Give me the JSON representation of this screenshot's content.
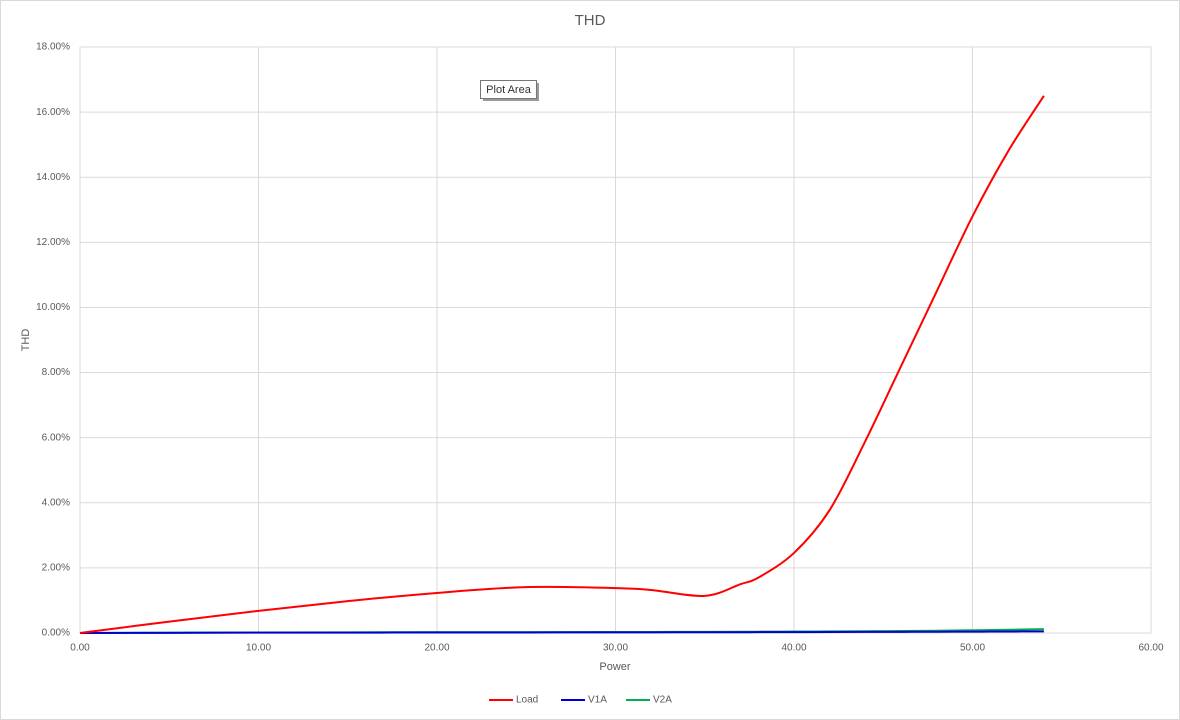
{
  "chart_data": {
    "type": "line",
    "title": "THD",
    "x_label": "Power",
    "y_label": "THD",
    "tooltip": "Plot Area",
    "xlim": [
      0,
      60
    ],
    "ylim": [
      0,
      18
    ],
    "xticks": [
      {
        "value": 0,
        "label": "0.00"
      },
      {
        "value": 10,
        "label": "10.00"
      },
      {
        "value": 20,
        "label": "20.00"
      },
      {
        "value": 30,
        "label": "30.00"
      },
      {
        "value": 40,
        "label": "40.00"
      },
      {
        "value": 50,
        "label": "50.00"
      },
      {
        "value": 60,
        "label": "60.00"
      }
    ],
    "yticks": [
      {
        "value": 0,
        "label": "0.00%"
      },
      {
        "value": 2,
        "label": "2.00%"
      },
      {
        "value": 4,
        "label": "4.00%"
      },
      {
        "value": 6,
        "label": "6.00%"
      },
      {
        "value": 8,
        "label": "8.00%"
      },
      {
        "value": 10,
        "label": "10.00%"
      },
      {
        "value": 12,
        "label": "12.00%"
      },
      {
        "value": 14,
        "label": "14.00%"
      },
      {
        "value": 16,
        "label": "16.00%"
      },
      {
        "value": 18,
        "label": "18.00%"
      }
    ],
    "grid": true,
    "legend": "bottom",
    "x": [
      0,
      5,
      10,
      15,
      20,
      25,
      30,
      32,
      35,
      37,
      38,
      40,
      42,
      44,
      46,
      48,
      50,
      52,
      54
    ],
    "series": [
      {
        "name": "Load",
        "color": "#ff0000",
        "values": [
          0,
          0.35,
          0.68,
          0.98,
          1.23,
          1.41,
          1.38,
          1.32,
          1.14,
          1.5,
          1.7,
          2.46,
          3.78,
          5.9,
          8.2,
          10.5,
          12.8,
          14.8,
          16.5
        ]
      },
      {
        "name": "V1A",
        "color": "#0000cc",
        "values": [
          0,
          0.005,
          0.01,
          0.012,
          0.015,
          0.017,
          0.02,
          0.021,
          0.022,
          0.024,
          0.025,
          0.027,
          0.03,
          0.033,
          0.036,
          0.04,
          0.043,
          0.047,
          0.05
        ]
      },
      {
        "name": "V2A",
        "color": "#00b050",
        "values": [
          0,
          0.01,
          0.015,
          0.02,
          0.025,
          0.028,
          0.03,
          0.032,
          0.035,
          0.038,
          0.04,
          0.045,
          0.05,
          0.055,
          0.06,
          0.07,
          0.085,
          0.1,
          0.12
        ]
      }
    ]
  }
}
